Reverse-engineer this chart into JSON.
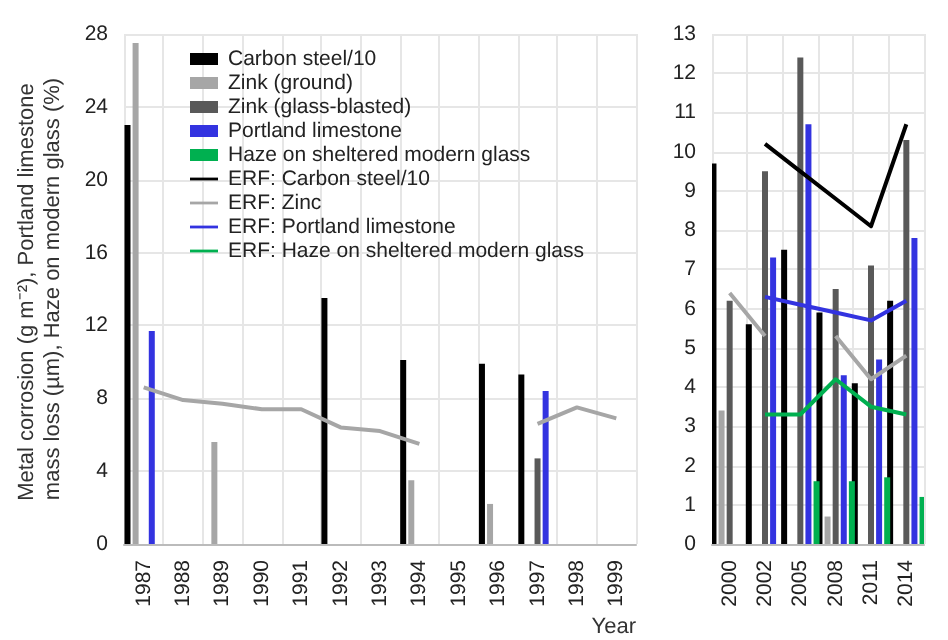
{
  "chart_data": [
    {
      "type": "bar",
      "ylabel": "Metal corrosion (g m⁻²), Portland limestone mass loss (µm), Haze on modern glass (%)",
      "xlabel": "Year",
      "categories": [
        "1987",
        "1988",
        "1989",
        "1990",
        "1991",
        "1992",
        "1993",
        "1994",
        "1995",
        "1996",
        "1997",
        "1998",
        "1999"
      ],
      "ylim": [
        0,
        28
      ],
      "yticks": [
        0,
        4,
        8,
        12,
        16,
        20,
        24,
        28
      ],
      "grid": true,
      "legend": "top left",
      "marker": "none",
      "series": [
        {
          "name": "Carbon steel/10",
          "color": "#000000",
          "values": [
            23,
            null,
            null,
            null,
            null,
            13.5,
            null,
            10.1,
            null,
            9.9,
            9.3,
            null,
            null
          ]
        },
        {
          "name": "Zink (ground)",
          "color": "#a6a6a6",
          "values": [
            27.5,
            null,
            5.6,
            null,
            null,
            null,
            null,
            3.5,
            null,
            2.2,
            null,
            null,
            null
          ]
        },
        {
          "name": "Zink (glass-blasted)",
          "color": "#595959",
          "values": [
            null,
            null,
            null,
            null,
            null,
            null,
            null,
            null,
            null,
            null,
            4.7,
            null,
            null
          ]
        },
        {
          "name": "Portland limestone",
          "color": "#3333e0",
          "values": [
            11.7,
            null,
            null,
            null,
            null,
            null,
            null,
            null,
            null,
            null,
            8.4,
            null,
            null
          ]
        },
        {
          "name": "Haze on sheltered modern glass",
          "color": "#00b050",
          "values": [
            null,
            null,
            null,
            null,
            null,
            null,
            null,
            null,
            null,
            null,
            null,
            null,
            null
          ]
        },
        {
          "name": "ERF: Carbon steel/10",
          "type": "line",
          "color": "#000000",
          "values": [
            null,
            null,
            null,
            null,
            null,
            null,
            null,
            null,
            null,
            null,
            null,
            null,
            null
          ]
        },
        {
          "name": "ERF: Zinc",
          "type": "line",
          "color": "#a6a6a6",
          "values": [
            8.6,
            7.9,
            7.7,
            7.4,
            7.4,
            6.4,
            6.2,
            5.5,
            null,
            null,
            6.6,
            7.5,
            6.9
          ]
        },
        {
          "name": "ERF: Portland limestone",
          "type": "line",
          "color": "#3333e0",
          "values": [
            null,
            null,
            null,
            null,
            null,
            null,
            null,
            null,
            null,
            null,
            null,
            null,
            null
          ]
        },
        {
          "name": "ERF: Haze on sheltered modern glass",
          "type": "line",
          "color": "#00b050",
          "values": [
            null,
            null,
            null,
            null,
            null,
            null,
            null,
            null,
            null,
            null,
            null,
            null,
            null
          ]
        }
      ]
    },
    {
      "type": "bar",
      "categories": [
        "2000",
        "2002",
        "2005",
        "2008",
        "2011",
        "2014"
      ],
      "ylim": [
        0,
        13
      ],
      "yticks": [
        0,
        1,
        2,
        3,
        4,
        5,
        6,
        7,
        8,
        9,
        10,
        11,
        12,
        13
      ],
      "grid": true,
      "marker": "none",
      "series": [
        {
          "color": "#000000",
          "values": [
            9.7,
            5.6,
            7.5,
            5.9,
            4.1,
            6.2
          ]
        },
        {
          "color": "#a6a6a6",
          "values": [
            3.4,
            null,
            null,
            0.7,
            null,
            null
          ]
        },
        {
          "color": "#595959",
          "values": [
            6.2,
            9.5,
            12.4,
            6.5,
            7.1,
            10.3
          ]
        },
        {
          "color": "#3333e0",
          "values": [
            null,
            7.3,
            10.7,
            4.3,
            4.7,
            7.8
          ]
        },
        {
          "color": "#00b050",
          "values": [
            null,
            null,
            1.6,
            1.6,
            1.7,
            1.2
          ]
        },
        {
          "type": "line",
          "color": "#000000",
          "values": [
            null,
            10.2,
            9.5,
            8.8,
            8.1,
            10.7
          ]
        },
        {
          "type": "line",
          "color": "#a6a6a6",
          "values": [
            6.4,
            5.3,
            null,
            5.3,
            4.2,
            4.8
          ]
        },
        {
          "type": "line",
          "color": "#3333e0",
          "values": [
            null,
            6.3,
            6.1,
            5.9,
            5.7,
            6.2
          ]
        },
        {
          "type": "line",
          "color": "#00b050",
          "values": [
            null,
            3.3,
            3.3,
            4.2,
            3.5,
            3.3
          ]
        }
      ]
    }
  ]
}
